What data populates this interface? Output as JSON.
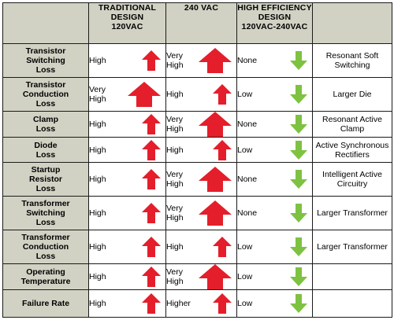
{
  "headers": {
    "traditional": [
      "TRADITIONAL",
      "DESIGN",
      "120VAC"
    ],
    "vac240": [
      "240 VAC"
    ],
    "high_eff": [
      "HIGH EFFICIENCY",
      "DESIGN",
      "120VAC-240VAC"
    ]
  },
  "colors": {
    "up": "#e41e2b",
    "down": "#7ec242",
    "header_bg": "#d2d2c4"
  },
  "rows": [
    {
      "label": [
        "Transistor",
        "Switching",
        "Loss"
      ],
      "trad": [
        "High"
      ],
      "trad_dir": "up",
      "trad_size": "medium",
      "v240": [
        "Very",
        "High"
      ],
      "v240_dir": "up",
      "v240_size": "large",
      "he": [
        "None"
      ],
      "he_dir": "down",
      "note": [
        "Resonant Soft",
        "Switching"
      ]
    },
    {
      "label": [
        "Transistor",
        "Conduction",
        "Loss"
      ],
      "trad": [
        "Very",
        "High"
      ],
      "trad_dir": "up",
      "trad_size": "large",
      "v240": [
        "High"
      ],
      "v240_dir": "up",
      "v240_size": "medium",
      "he": [
        "Low"
      ],
      "he_dir": "down",
      "note": [
        "Larger Die"
      ]
    },
    {
      "label": [
        "Clamp",
        "Loss"
      ],
      "trad": [
        "High"
      ],
      "trad_dir": "up",
      "trad_size": "medium",
      "v240": [
        "Very",
        "High"
      ],
      "v240_dir": "up",
      "v240_size": "large",
      "he": [
        "None"
      ],
      "he_dir": "down",
      "note": [
        "Resonant Active",
        "Clamp"
      ]
    },
    {
      "label": [
        "Diode",
        "Loss"
      ],
      "trad": [
        "High"
      ],
      "trad_dir": "up",
      "trad_size": "medium",
      "v240": [
        "High"
      ],
      "v240_dir": "up",
      "v240_size": "medium",
      "he": [
        "Low"
      ],
      "he_dir": "down",
      "note": [
        "Active Synchronous",
        "Rectifiers"
      ]
    },
    {
      "label": [
        "Startup",
        "Resistor",
        "Loss"
      ],
      "trad": [
        "High"
      ],
      "trad_dir": "up",
      "trad_size": "medium",
      "v240": [
        "Very",
        "High"
      ],
      "v240_dir": "up",
      "v240_size": "large",
      "he": [
        "None"
      ],
      "he_dir": "down",
      "note": [
        "Intelligent Active",
        "Circuitry"
      ]
    },
    {
      "label": [
        "Transformer",
        "Switching",
        "Loss"
      ],
      "trad": [
        "High"
      ],
      "trad_dir": "up",
      "trad_size": "medium",
      "v240": [
        "Very",
        "High"
      ],
      "v240_dir": "up",
      "v240_size": "large",
      "he": [
        "None"
      ],
      "he_dir": "down",
      "note": [
        "Larger Transformer"
      ]
    },
    {
      "label": [
        "Transformer",
        "Conduction",
        "Loss"
      ],
      "trad": [
        "High"
      ],
      "trad_dir": "up",
      "trad_size": "medium",
      "v240": [
        "High"
      ],
      "v240_dir": "up",
      "v240_size": "medium",
      "he": [
        "Low"
      ],
      "he_dir": "down",
      "note": [
        "Larger Transformer"
      ]
    },
    {
      "label": [
        "Operating",
        "Temperature"
      ],
      "trad": [
        "High"
      ],
      "trad_dir": "up",
      "trad_size": "medium",
      "v240": [
        "Very",
        "High"
      ],
      "v240_dir": "up",
      "v240_size": "large",
      "he": [
        "Low"
      ],
      "he_dir": "down",
      "note": []
    },
    {
      "label": [
        "Failure Rate"
      ],
      "trad": [
        "High"
      ],
      "trad_dir": "up",
      "trad_size": "medium",
      "v240": [
        "Higher"
      ],
      "v240_dir": "up",
      "v240_size": "medium",
      "he": [
        "Low"
      ],
      "he_dir": "down",
      "note": []
    }
  ]
}
